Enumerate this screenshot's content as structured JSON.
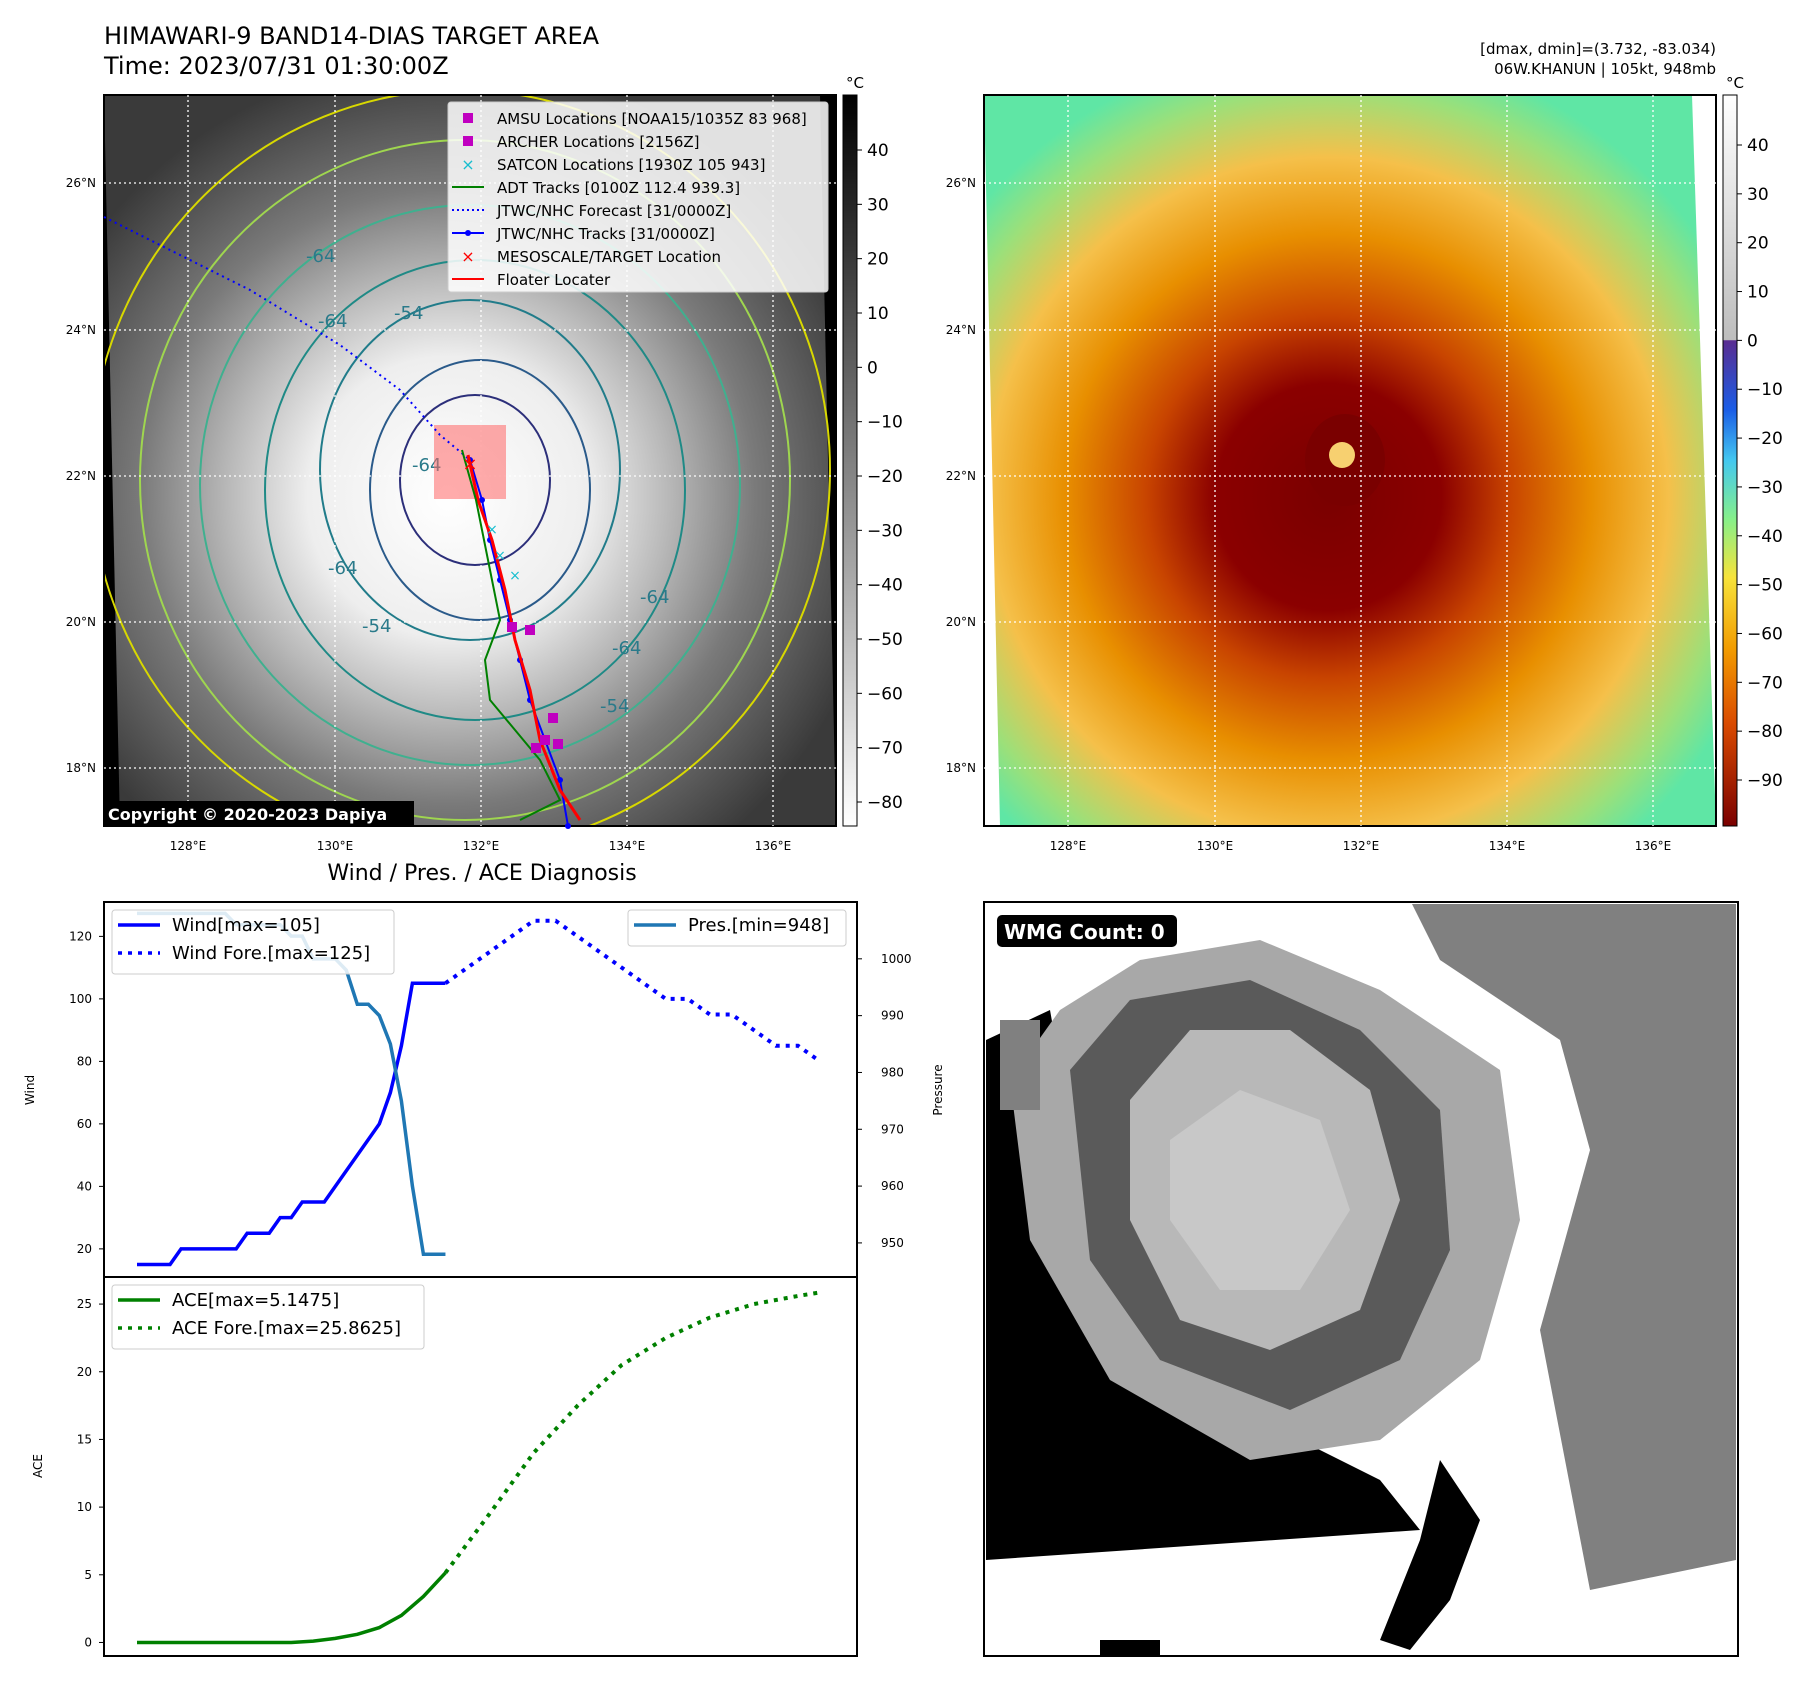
{
  "header": {
    "title_line1": "HIMAWARI-9 BAND14-DIAS TARGET AREA",
    "title_line2": "Time: 2023/07/31 01:30:00Z",
    "right_line1": "[dmax, dmin]=(3.732, -83.034)",
    "right_line2": "06W.KHANUN | 105kt, 948mb"
  },
  "copyright": "Copyright © 2020-2023 Dapiya",
  "colors": {
    "jtwc_track": "#0000ff",
    "adt_track": "#008000",
    "floater": "#ff0000",
    "amsu": "#c000c0",
    "archer": "#c000c0",
    "satcon": "#17becf",
    "wind": "#0000ff",
    "pressure": "#1f77b4",
    "ace": "#008000"
  },
  "maps": {
    "lon_labels": [
      "128°E",
      "130°E",
      "132°E",
      "134°E",
      "136°E"
    ],
    "lat_labels": [
      "26°N",
      "24°N",
      "22°N",
      "20°N",
      "18°N"
    ],
    "contour_labels": [
      "-64",
      "-54",
      "-64",
      "-64",
      "-64",
      "-54",
      "-64",
      "-64",
      "-54"
    ],
    "legend": [
      "AMSU Locations [NOAA15/1035Z 83 968]",
      "ARCHER Locations [2156Z]",
      "SATCON Locations [1930Z 105 943]",
      "ADT Tracks [0100Z 112.4 939.3]",
      "JTWC/NHC Forecast [31/0000Z]",
      "JTWC/NHC Tracks [31/0000Z]",
      "MESOSCALE/TARGET Location",
      "Floater Locater"
    ],
    "cbar1": {
      "unit": "°C",
      "ticks": [
        "40",
        "30",
        "20",
        "10",
        "0",
        "−10",
        "−20",
        "−30",
        "−40",
        "−50",
        "−60",
        "−70",
        "−80"
      ]
    },
    "cbar2": {
      "unit": "°C",
      "ticks": [
        "40",
        "30",
        "20",
        "10",
        "0",
        "−10",
        "−20",
        "−30",
        "−40",
        "−50",
        "−60",
        "−70",
        "−80",
        "−90"
      ]
    }
  },
  "diag": {
    "title": "Wind / Pres. / ACE Diagnosis",
    "wind_ylabel": "Wind",
    "pres_ylabel": "Pressure",
    "ace_ylabel": "ACE",
    "legend_wind": "Wind[max=105]",
    "legend_wind_fore": "Wind Fore.[max=125]",
    "legend_pres": "Pres.[min=948]",
    "legend_ace": "ACE[max=5.1475]",
    "legend_ace_fore": "ACE Fore.[max=25.8625]",
    "wind_ticks": [
      "120",
      "100",
      "80",
      "60",
      "40",
      "20"
    ],
    "pres_ticks": [
      "1000",
      "990",
      "980",
      "970",
      "960",
      "950"
    ],
    "ace_ticks": [
      "25",
      "20",
      "15",
      "10",
      "5",
      "0"
    ]
  },
  "wmg": {
    "label": "WMG Count: 0"
  },
  "chart_data": [
    {
      "type": "line",
      "title": "Wind / Pres. / ACE Diagnosis",
      "ylabel": "Wind",
      "ylim": [
        11,
        131
      ],
      "series": [
        {
          "name": "Wind[max=105]",
          "x": [
            0,
            1,
            2,
            3,
            4,
            5,
            6,
            7,
            8,
            9,
            10,
            11,
            12,
            13,
            14,
            15,
            16,
            17,
            18,
            19,
            20,
            21,
            22,
            23,
            24,
            25,
            26,
            27,
            28
          ],
          "values": [
            15,
            15,
            15,
            15,
            20,
            20,
            20,
            20,
            20,
            20,
            25,
            25,
            25,
            30,
            30,
            35,
            35,
            35,
            40,
            45,
            50,
            55,
            60,
            70,
            85,
            105,
            105,
            105,
            105
          ]
        },
        {
          "name": "Wind Fore.[max=125]",
          "x": [
            28,
            30,
            32,
            34,
            36,
            38,
            40,
            42,
            44,
            46,
            48,
            50,
            52,
            54,
            56,
            58,
            60,
            62
          ],
          "values": [
            105,
            110,
            115,
            120,
            125,
            125,
            120,
            115,
            110,
            105,
            100,
            100,
            95,
            95,
            90,
            85,
            85,
            80
          ]
        }
      ]
    },
    {
      "type": "line",
      "ylabel": "Pressure",
      "ylim": [
        944,
        1010
      ],
      "series": [
        {
          "name": "Pres.[min=948]",
          "x": [
            0,
            1,
            2,
            3,
            4,
            5,
            6,
            7,
            8,
            9,
            10,
            11,
            12,
            13,
            14,
            15,
            16,
            17,
            18,
            19,
            20,
            21,
            22,
            23,
            24,
            25,
            26,
            27,
            28
          ],
          "values": [
            1008,
            1008,
            1008,
            1008,
            1008,
            1008,
            1008,
            1008,
            1008,
            1006,
            1006,
            1006,
            1006,
            1006,
            1004,
            1004,
            1000,
            1000,
            1000,
            998,
            992,
            992,
            990,
            985,
            975,
            960,
            948,
            948,
            948
          ]
        }
      ]
    },
    {
      "type": "line",
      "ylabel": "ACE",
      "ylim": [
        -1,
        27
      ],
      "series": [
        {
          "name": "ACE[max=5.1475]",
          "x": [
            0,
            2,
            4,
            6,
            8,
            10,
            12,
            14,
            16,
            18,
            20,
            22,
            24,
            26,
            28
          ],
          "values": [
            0,
            0,
            0,
            0,
            0,
            0,
            0,
            0,
            0.1,
            0.3,
            0.6,
            1.1,
            2.0,
            3.4,
            5.1475
          ]
        },
        {
          "name": "ACE Fore.[max=25.8625]",
          "x": [
            28,
            32,
            36,
            40,
            44,
            48,
            52,
            56,
            60,
            62
          ],
          "values": [
            5.1475,
            9.5,
            14,
            17.5,
            20.5,
            22.5,
            24,
            25,
            25.6,
            25.8625
          ]
        }
      ]
    }
  ]
}
